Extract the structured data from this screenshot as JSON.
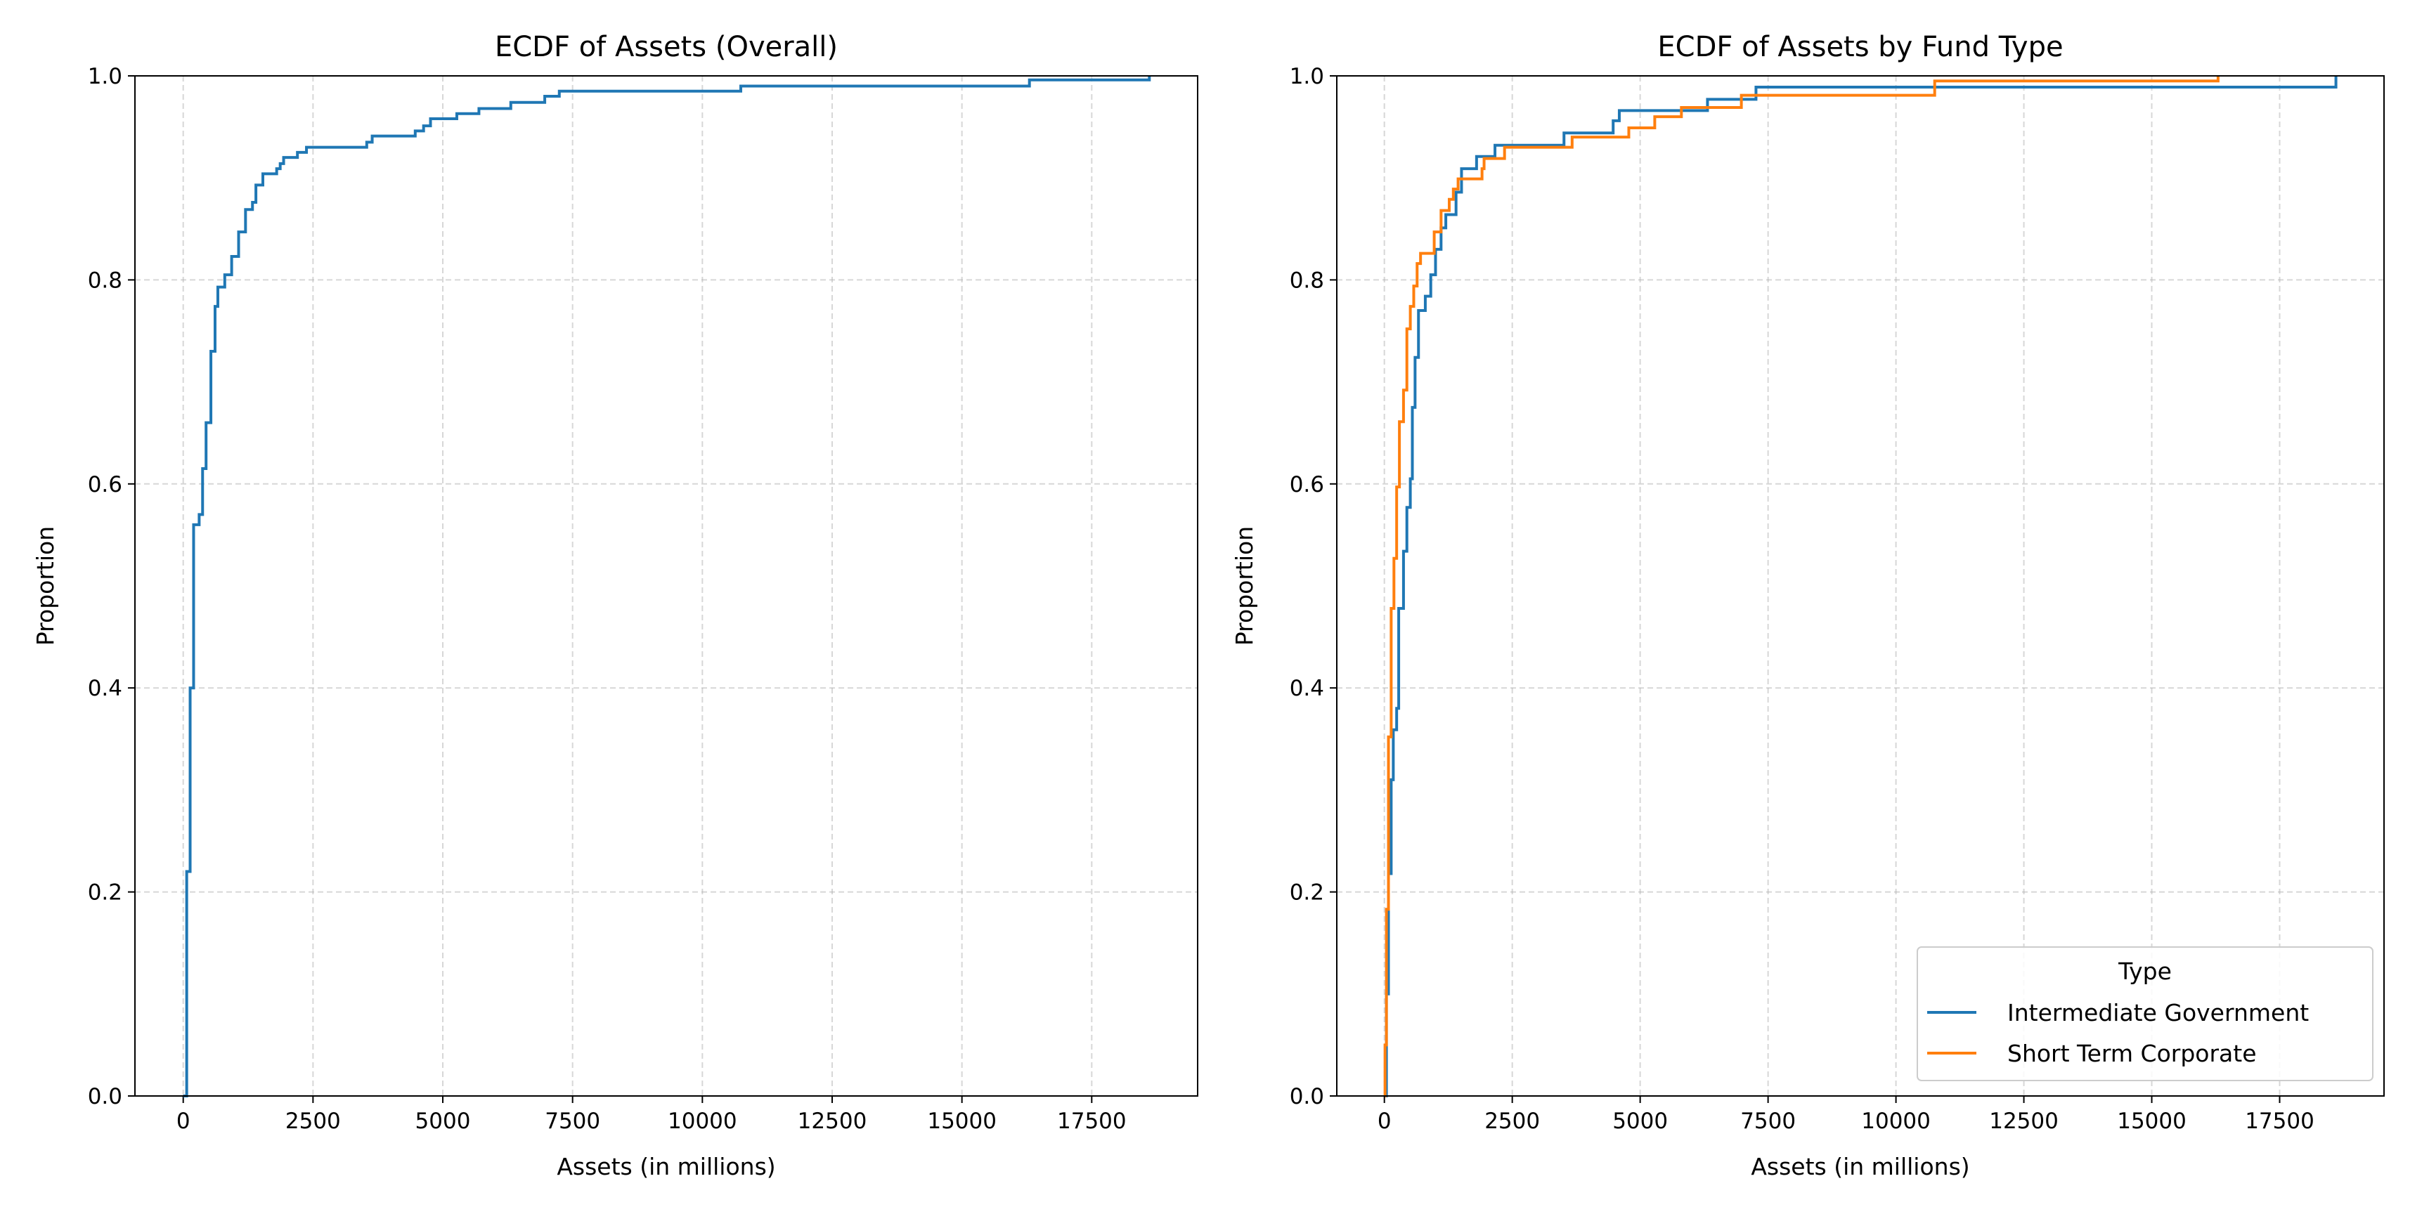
{
  "chart_data": [
    {
      "type": "line",
      "step": true,
      "title": "ECDF of Assets (Overall)",
      "xlabel": "Assets (in millions)",
      "ylabel": "Proportion",
      "xlim": [
        -930,
        19540
      ],
      "ylim": [
        0,
        1
      ],
      "xticks": [
        0,
        2500,
        5000,
        7500,
        10000,
        12500,
        15000,
        17500
      ],
      "yticks": [
        0.0,
        0.2,
        0.4,
        0.6,
        0.8,
        1.0
      ],
      "grid": true,
      "series": [
        {
          "name": "Overall",
          "color": "#1f77b4",
          "x": [
            0,
            67,
            133,
            200,
            307,
            373,
            440,
            533,
            613,
            667,
            800,
            933,
            1067,
            1200,
            1334,
            1400,
            1534,
            1800,
            1868,
            1934,
            2200,
            2374,
            3535,
            3640,
            4469,
            4630,
            4763,
            5270,
            5696,
            6310,
            6964,
            7244,
            10740,
            16300,
            18610
          ],
          "y": [
            0,
            0.22,
            0.4,
            0.56,
            0.57,
            0.615,
            0.66,
            0.73,
            0.774,
            0.793,
            0.805,
            0.823,
            0.847,
            0.869,
            0.876,
            0.893,
            0.904,
            0.909,
            0.914,
            0.92,
            0.925,
            0.93,
            0.935,
            0.941,
            0.946,
            0.951,
            0.958,
            0.963,
            0.968,
            0.974,
            0.98,
            0.985,
            0.99,
            0.996,
            1.0
          ]
        }
      ]
    },
    {
      "type": "line",
      "step": true,
      "title": "ECDF of Assets by Fund Type",
      "xlabel": "Assets (in millions)",
      "ylabel": "Proportion",
      "xlim": [
        -930,
        19540
      ],
      "ylim": [
        0,
        1
      ],
      "xticks": [
        0,
        2500,
        5000,
        7500,
        10000,
        12500,
        15000,
        17500
      ],
      "yticks": [
        0.0,
        0.2,
        0.4,
        0.6,
        0.8,
        1.0
      ],
      "grid": true,
      "legend": {
        "title": "Type",
        "placement": "lower-right"
      },
      "series": [
        {
          "name": "Intermediate Government",
          "color": "#1f77b4",
          "x": [
            0,
            40,
            80,
            133,
            174,
            240,
            280,
            374,
            440,
            507,
            547,
            600,
            667,
            800,
            907,
            1000,
            1108,
            1201,
            1401,
            1508,
            1802,
            2162,
            3511,
            4472,
            4592,
            6316,
            7264,
            18600
          ],
          "y": [
            0,
            0.1,
            0.218,
            0.31,
            0.359,
            0.38,
            0.478,
            0.534,
            0.577,
            0.605,
            0.675,
            0.724,
            0.77,
            0.784,
            0.805,
            0.83,
            0.851,
            0.864,
            0.886,
            0.909,
            0.921,
            0.932,
            0.944,
            0.956,
            0.966,
            0.977,
            0.989,
            1.0
          ]
        },
        {
          "name": "Short Term Corporate",
          "color": "#ff7f0e",
          "x": [
            0,
            13,
            40,
            80,
            133,
            187,
            240,
            294,
            374,
            440,
            507,
            574,
            640,
            707,
            974,
            1108,
            1268,
            1348,
            1441,
            1909,
            1949,
            2349,
            3670,
            4778,
            5285,
            5806,
            6978,
            10757,
            16296
          ],
          "y": [
            0,
            0.05,
            0.183,
            0.352,
            0.478,
            0.527,
            0.597,
            0.661,
            0.692,
            0.752,
            0.774,
            0.794,
            0.816,
            0.826,
            0.847,
            0.868,
            0.879,
            0.889,
            0.899,
            0.909,
            0.919,
            0.93,
            0.94,
            0.949,
            0.96,
            0.969,
            0.981,
            0.995,
            1.0
          ]
        }
      ]
    }
  ]
}
